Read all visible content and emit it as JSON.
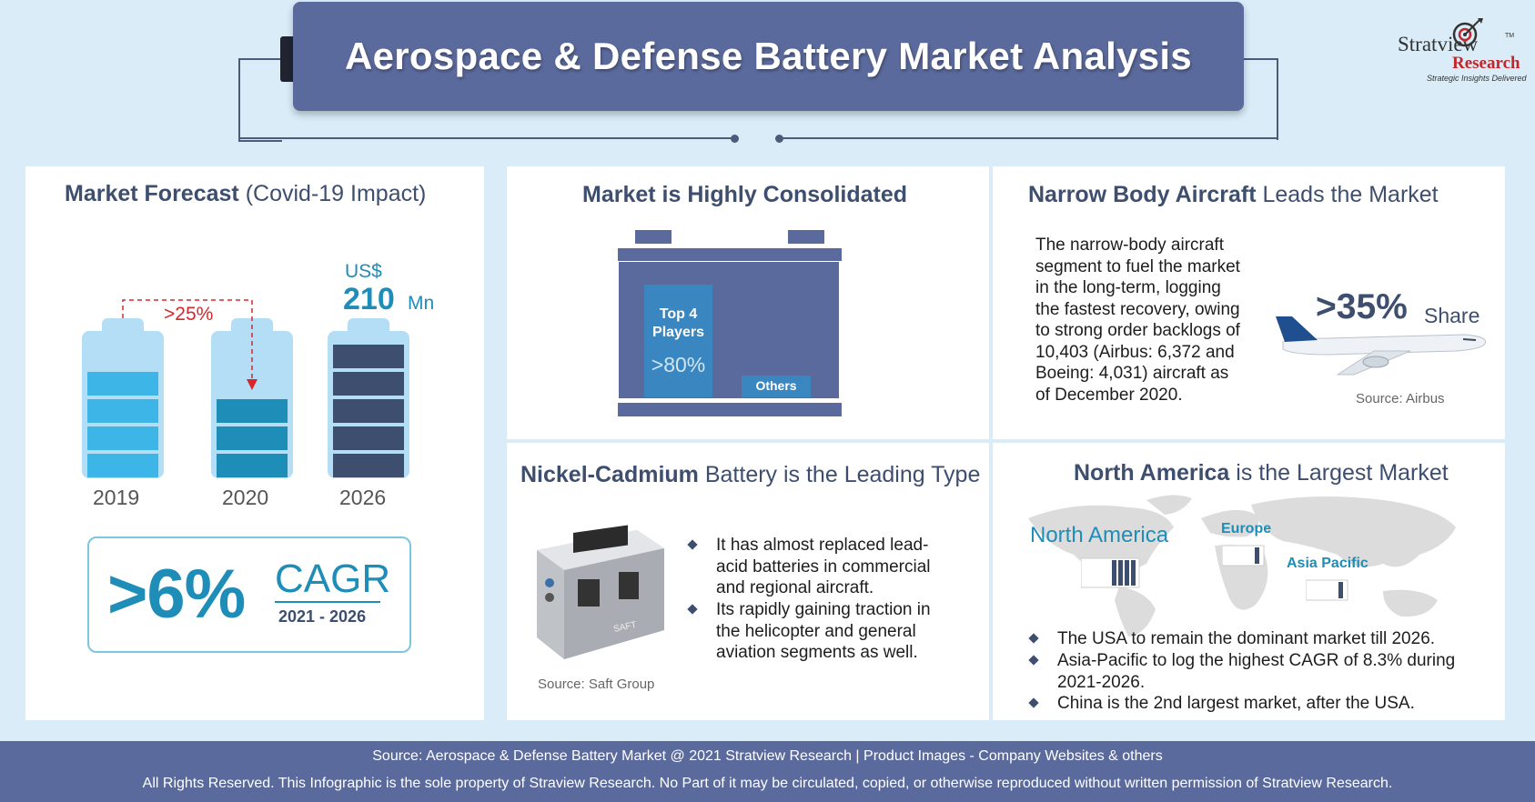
{
  "header": {
    "title": "Aerospace & Defense Battery Market Analysis",
    "logo": {
      "brand_top": "Stratview",
      "brand_bottom": "Research",
      "tm": "TM",
      "tagline": "Strategic Insights Delivered"
    }
  },
  "forecast": {
    "title_bold": "Market Forecast",
    "title_rest": "(Covid-19 Impact)",
    "decline_label": ">25%",
    "value_unit": "US$",
    "value": "210",
    "value_suffix": "Mn",
    "years": [
      "2019",
      "2020",
      "2026"
    ],
    "cagr_value": ">6%",
    "cagr_label": "CAGR",
    "cagr_period": "2021 - 2026"
  },
  "consolidated": {
    "title": "Market is Highly Consolidated",
    "top_label": "Top 4 Players",
    "top_value": ">80%",
    "others_label": "Others"
  },
  "narrow_body": {
    "title_bold": "Narrow Body Aircraft",
    "title_rest": "Leads the Market",
    "text_lines": [
      "The narrow-body aircraft",
      "segment to fuel the market",
      "in the long-term, logging",
      "the fastest recovery, owing",
      "to strong order backlogs of",
      "10,403 (Airbus: 6,372 and",
      "Boeing: 4,031) aircraft as",
      "of December 2020."
    ],
    "share_value": ">35%",
    "share_label": "Share",
    "source": "Source: Airbus"
  },
  "nicad": {
    "title_bold": "Nickel-Cadmium",
    "title_rest": "Battery is the Leading Type",
    "bullets": [
      [
        "It has almost replaced lead-",
        "acid batteries in commercial",
        "and regional aircraft."
      ],
      [
        "Its rapidly gaining traction in",
        "the helicopter and general",
        "aviation segments as well."
      ]
    ],
    "source": "Source: Saft Group",
    "brand": "SAFT"
  },
  "region": {
    "title_bold": "North America",
    "title_rest": "is the Largest Market",
    "labels": {
      "na": "North America",
      "eu": "Europe",
      "ap": "Asia Pacific"
    },
    "bullets": [
      [
        "The USA to remain the dominant market till 2026."
      ],
      [
        "Asia-Pacific to log the highest CAGR of 8.3% during",
        "2021-2026."
      ],
      [
        "China is the 2nd largest market, after the USA."
      ]
    ]
  },
  "footer": {
    "line1": "Source: Aerospace & Defense Battery Market @ 2021 Stratview Research  |  Product Images  - Company Websites & others",
    "line2": "All Rights Reserved. This Infographic is the sole property of Straview Research. No Part of it may be circulated, copied, or otherwise reproduced without written permission of Stratview Research."
  },
  "colors": {
    "navy": "#5b6a9c",
    "dark_navy": "#3e4e6e",
    "light_blue": "#b4def5",
    "cyan": "#3db5e6",
    "teal": "#1e8db8",
    "red": "#d9262c"
  }
}
